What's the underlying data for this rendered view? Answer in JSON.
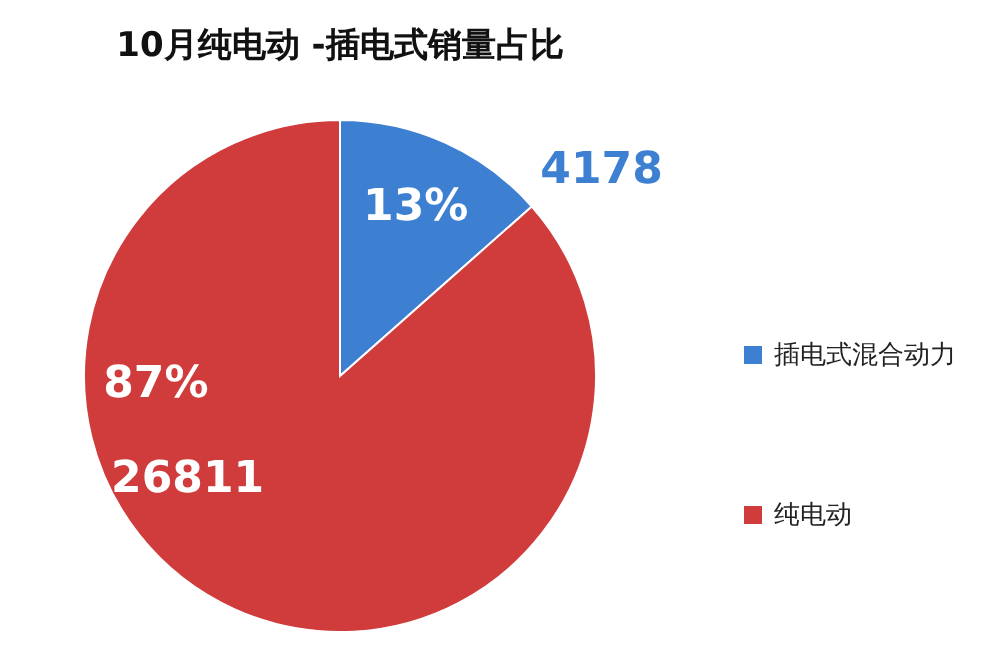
{
  "chart_data": {
    "type": "pie",
    "title": "10月纯电动 -插电式销量占比",
    "categories": [
      "插电式混合动力",
      "纯电动"
    ],
    "values": [
      4178,
      26811
    ],
    "colors": [
      "#3d7fd1",
      "#d03b3b"
    ],
    "value_labels": [
      "4178",
      "26811"
    ],
    "annotations": [
      "13%",
      "87%"
    ],
    "legend": "right"
  }
}
